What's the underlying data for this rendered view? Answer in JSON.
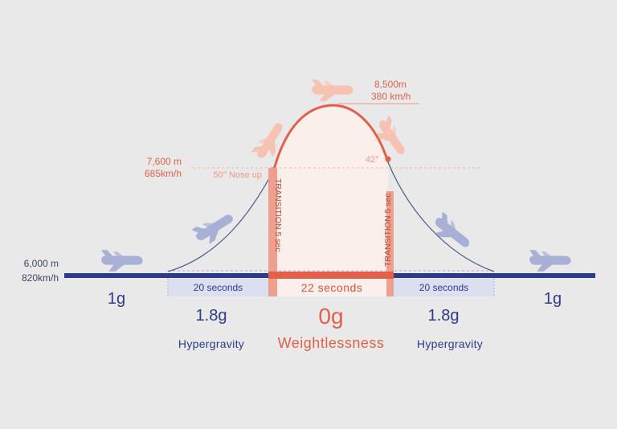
{
  "start": {
    "altitude": "6,000 m",
    "speed": "820km/h"
  },
  "pullup": {
    "altitude": "7,600 m",
    "speed": "685km/h",
    "angle_label": "50° Nose up"
  },
  "apex": {
    "altitude": "8,500m",
    "speed": "380 km/h"
  },
  "pushout": {
    "angle_label": "42°"
  },
  "transitions": {
    "left": "TRANSITION 5 sec",
    "right": "TRANSITION 5 sec"
  },
  "phases": [
    {
      "duration": "",
      "g": "1g",
      "name": ""
    },
    {
      "duration": "20 seconds",
      "g": "1.8g",
      "name": "Hypergravity"
    },
    {
      "duration": "22 seconds",
      "g": "0g",
      "name": "Weightlessness"
    },
    {
      "duration": "20 seconds",
      "g": "1.8g",
      "name": "Hypergravity"
    },
    {
      "duration": "",
      "g": "1g",
      "name": ""
    }
  ],
  "icons": [
    "airplane-icon"
  ],
  "colors": {
    "background": "#e9e9e9",
    "navy": "#2e3b8a",
    "parabola": "#e2604a",
    "weightless_fill": "#fbefeb",
    "transition_bar": "#eda08f",
    "hypergravity_band": "#dcdff0",
    "plane_blue": "#a9b0d6",
    "plane_peach": "#f6c3b3"
  }
}
